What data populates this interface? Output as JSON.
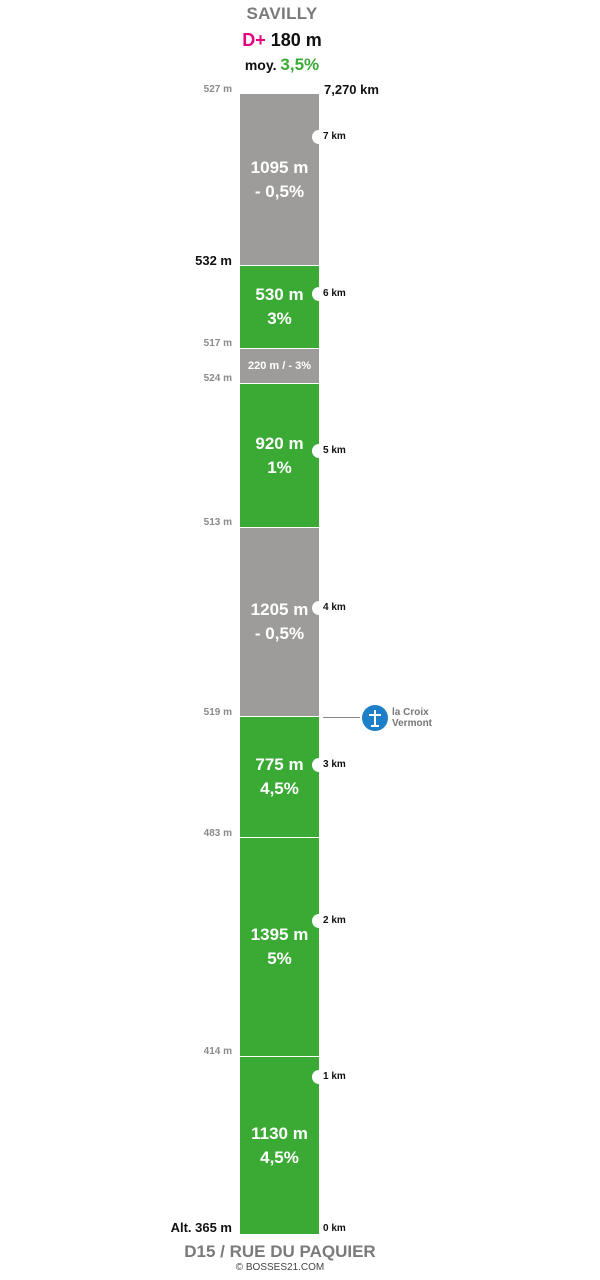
{
  "header": {
    "title": "SAVILLY",
    "dplus_label": "D+",
    "dplus_value": "180 m",
    "avg_label": "moy.",
    "avg_value": "3,5%"
  },
  "total_distance": "7,270 km",
  "segments": [
    {
      "length": "1130 m",
      "grade": "4,5%",
      "type": "climb"
    },
    {
      "length": "1395 m",
      "grade": "5%",
      "type": "climb"
    },
    {
      "length": "775 m",
      "grade": "4,5%",
      "type": "climb"
    },
    {
      "length": "1205 m",
      "grade": "- 0,5%",
      "type": "descent"
    },
    {
      "length": "920 m",
      "grade": "1%",
      "type": "climb"
    },
    {
      "length": "220 m / - 3%",
      "grade": "",
      "type": "descent"
    },
    {
      "length": "530 m",
      "grade": "3%",
      "type": "climb"
    },
    {
      "length": "1095 m",
      "grade": "- 0,5%",
      "type": "descent"
    }
  ],
  "altitudes": [
    "Alt. 365 m",
    "414 m",
    "483 m",
    "519 m",
    "513 m",
    "524 m",
    "517 m",
    "532 m",
    "527 m"
  ],
  "km_markers": [
    "0 km",
    "1 km",
    "2 km",
    "3 km",
    "4 km",
    "5 km",
    "6 km",
    "7 km"
  ],
  "poi": {
    "line1": "la Croix",
    "line2": "Vermont",
    "icon": "cross-icon"
  },
  "footer": {
    "road": "D15 / RUE DU PAQUIER",
    "credit": "© BOSSES21.COM"
  },
  "colors": {
    "climb": "#3aaa35",
    "descent": "#9d9c9a",
    "accent": "#e5007e",
    "poi": "#1c7fc7"
  }
}
